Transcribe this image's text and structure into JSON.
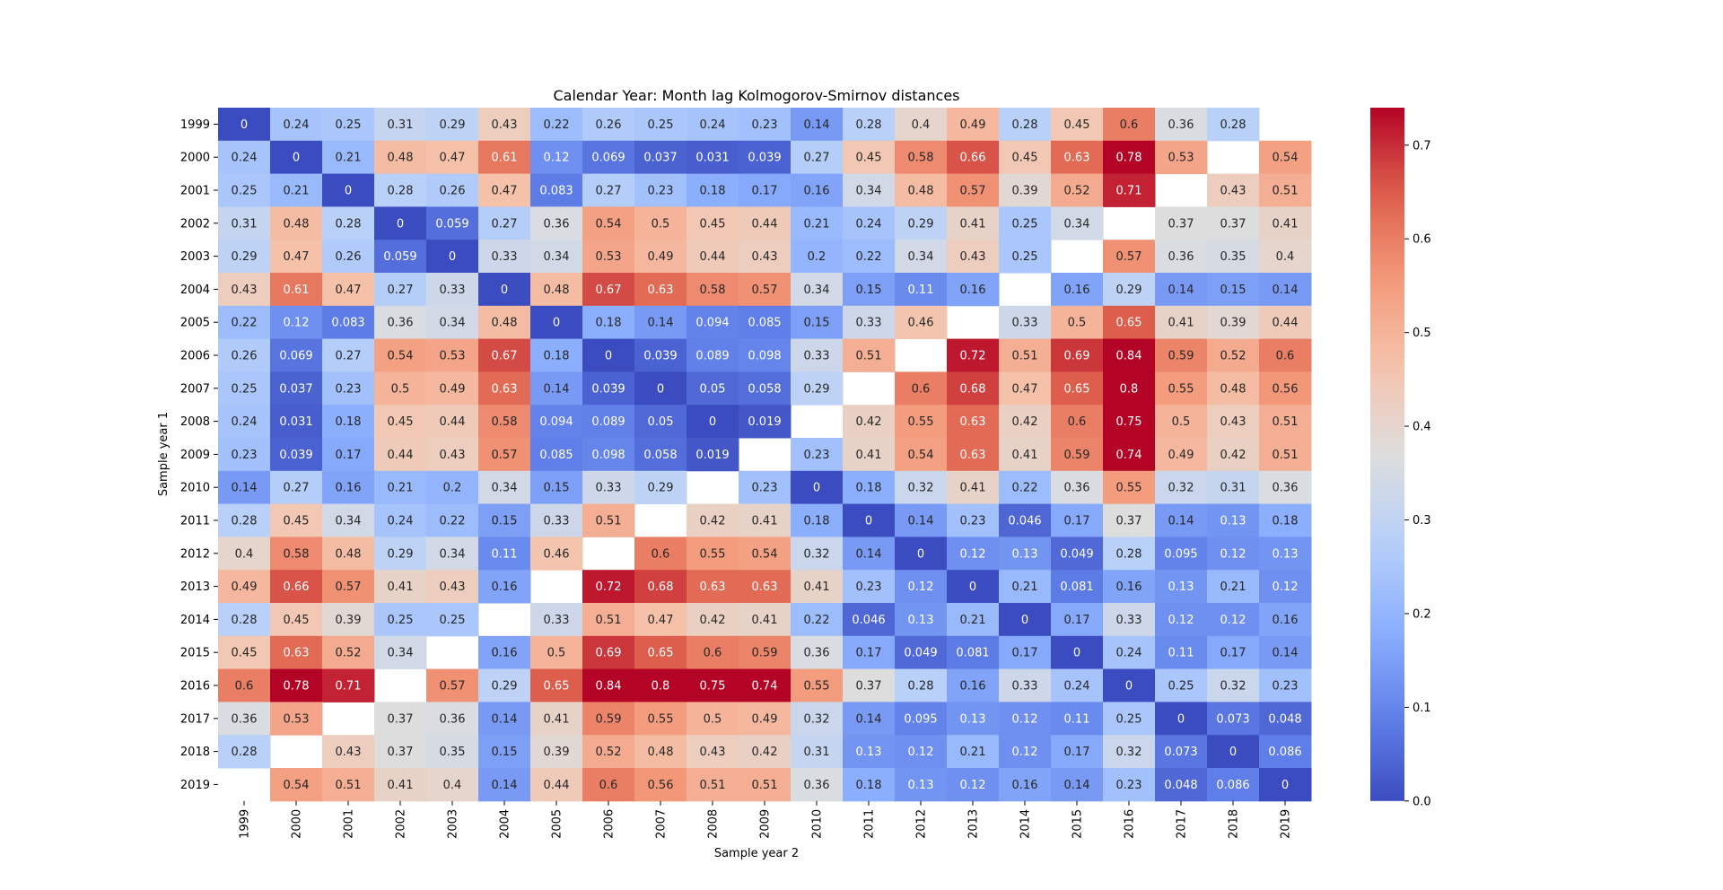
{
  "chart_data": {
    "type": "heatmap",
    "title": "Calendar Year: Month lag Kolmogorov-Smirnov distances",
    "xlabel": "Sample year 2",
    "ylabel": "Sample year 1",
    "x_categories": [
      "1999",
      "2000",
      "2001",
      "2002",
      "2003",
      "2004",
      "2005",
      "2006",
      "2007",
      "2008",
      "2009",
      "2010",
      "2011",
      "2012",
      "2013",
      "2014",
      "2015",
      "2016",
      "2017",
      "2018",
      "2019"
    ],
    "y_categories": [
      "1999",
      "2000",
      "2001",
      "2002",
      "2003",
      "2004",
      "2005",
      "2006",
      "2007",
      "2008",
      "2009",
      "2010",
      "2011",
      "2012",
      "2013",
      "2014",
      "2015",
      "2016",
      "2017",
      "2018",
      "2019"
    ],
    "values": [
      [
        0,
        0.24,
        0.25,
        0.31,
        0.29,
        0.43,
        0.22,
        0.26,
        0.25,
        0.24,
        0.23,
        0.14,
        0.28,
        0.4,
        0.49,
        0.28,
        0.45,
        0.6,
        0.36,
        0.28,
        null
      ],
      [
        0.24,
        0,
        0.21,
        0.48,
        0.47,
        0.61,
        0.12,
        0.069,
        0.037,
        0.031,
        0.039,
        0.27,
        0.45,
        0.58,
        0.66,
        0.45,
        0.63,
        0.78,
        0.53,
        null,
        0.54
      ],
      [
        0.25,
        0.21,
        0,
        0.28,
        0.26,
        0.47,
        0.083,
        0.27,
        0.23,
        0.18,
        0.17,
        0.16,
        0.34,
        0.48,
        0.57,
        0.39,
        0.52,
        0.71,
        null,
        0.43,
        0.51
      ],
      [
        0.31,
        0.48,
        0.28,
        0,
        0.059,
        0.27,
        0.36,
        0.54,
        0.5,
        0.45,
        0.44,
        0.21,
        0.24,
        0.29,
        0.41,
        0.25,
        0.34,
        null,
        0.37,
        0.37,
        0.41
      ],
      [
        0.29,
        0.47,
        0.26,
        0.059,
        0,
        0.33,
        0.34,
        0.53,
        0.49,
        0.44,
        0.43,
        0.2,
        0.22,
        0.34,
        0.43,
        0.25,
        null,
        0.57,
        0.36,
        0.35,
        0.4
      ],
      [
        0.43,
        0.61,
        0.47,
        0.27,
        0.33,
        0,
        0.48,
        0.67,
        0.63,
        0.58,
        0.57,
        0.34,
        0.15,
        0.11,
        0.16,
        null,
        0.16,
        0.29,
        0.14,
        0.15,
        0.14
      ],
      [
        0.22,
        0.12,
        0.083,
        0.36,
        0.34,
        0.48,
        0,
        0.18,
        0.14,
        0.094,
        0.085,
        0.15,
        0.33,
        0.46,
        null,
        0.33,
        0.5,
        0.65,
        0.41,
        0.39,
        0.44
      ],
      [
        0.26,
        0.069,
        0.27,
        0.54,
        0.53,
        0.67,
        0.18,
        0,
        0.039,
        0.089,
        0.098,
        0.33,
        0.51,
        null,
        0.72,
        0.51,
        0.69,
        0.84,
        0.59,
        0.52,
        0.6
      ],
      [
        0.25,
        0.037,
        0.23,
        0.5,
        0.49,
        0.63,
        0.14,
        0.039,
        0,
        0.05,
        0.058,
        0.29,
        null,
        0.6,
        0.68,
        0.47,
        0.65,
        0.8,
        0.55,
        0.48,
        0.56
      ],
      [
        0.24,
        0.031,
        0.18,
        0.45,
        0.44,
        0.58,
        0.094,
        0.089,
        0.05,
        0,
        0.019,
        null,
        0.42,
        0.55,
        0.63,
        0.42,
        0.6,
        0.75,
        0.5,
        0.43,
        0.51
      ],
      [
        0.23,
        0.039,
        0.17,
        0.44,
        0.43,
        0.57,
        0.085,
        0.098,
        0.058,
        0.019,
        null,
        0.23,
        0.41,
        0.54,
        0.63,
        0.41,
        0.59,
        0.74,
        0.49,
        0.42,
        0.51
      ],
      [
        0.14,
        0.27,
        0.16,
        0.21,
        0.2,
        0.34,
        0.15,
        0.33,
        0.29,
        null,
        0.23,
        0,
        0.18,
        0.32,
        0.41,
        0.22,
        0.36,
        0.55,
        0.32,
        0.31,
        0.36
      ],
      [
        0.28,
        0.45,
        0.34,
        0.24,
        0.22,
        0.15,
        0.33,
        0.51,
        null,
        0.42,
        0.41,
        0.18,
        0,
        0.14,
        0.23,
        0.046,
        0.17,
        0.37,
        0.14,
        0.13,
        0.18
      ],
      [
        0.4,
        0.58,
        0.48,
        0.29,
        0.34,
        0.11,
        0.46,
        null,
        0.6,
        0.55,
        0.54,
        0.32,
        0.14,
        0,
        0.12,
        0.13,
        0.049,
        0.28,
        0.095,
        0.12,
        0.13
      ],
      [
        0.49,
        0.66,
        0.57,
        0.41,
        0.43,
        0.16,
        null,
        0.72,
        0.68,
        0.63,
        0.63,
        0.41,
        0.23,
        0.12,
        0,
        0.21,
        0.081,
        0.16,
        0.13,
        0.21,
        0.12
      ],
      [
        0.28,
        0.45,
        0.39,
        0.25,
        0.25,
        null,
        0.33,
        0.51,
        0.47,
        0.42,
        0.41,
        0.22,
        0.046,
        0.13,
        0.21,
        0,
        0.17,
        0.33,
        0.12,
        0.12,
        0.16
      ],
      [
        0.45,
        0.63,
        0.52,
        0.34,
        null,
        0.16,
        0.5,
        0.69,
        0.65,
        0.6,
        0.59,
        0.36,
        0.17,
        0.049,
        0.081,
        0.17,
        0,
        0.24,
        0.11,
        0.17,
        0.14
      ],
      [
        0.6,
        0.78,
        0.71,
        null,
        0.57,
        0.29,
        0.65,
        0.84,
        0.8,
        0.75,
        0.74,
        0.55,
        0.37,
        0.28,
        0.16,
        0.33,
        0.24,
        0,
        0.25,
        0.32,
        0.23
      ],
      [
        0.36,
        0.53,
        null,
        0.37,
        0.36,
        0.14,
        0.41,
        0.59,
        0.55,
        0.5,
        0.49,
        0.32,
        0.14,
        0.095,
        0.13,
        0.12,
        0.11,
        0.25,
        0,
        0.073,
        0.048
      ],
      [
        0.28,
        null,
        0.43,
        0.37,
        0.35,
        0.15,
        0.39,
        0.52,
        0.48,
        0.43,
        0.42,
        0.31,
        0.13,
        0.12,
        0.21,
        0.12,
        0.17,
        0.32,
        0.073,
        0,
        0.086
      ],
      [
        null,
        0.54,
        0.51,
        0.41,
        0.4,
        0.14,
        0.44,
        0.6,
        0.56,
        0.51,
        0.51,
        0.36,
        0.18,
        0.13,
        0.12,
        0.16,
        0.14,
        0.23,
        0.048,
        0.086,
        0
      ]
    ],
    "colorscale": "coolwarm",
    "vmin": 0,
    "vmax": 0.74,
    "colorbar_ticks": [
      "0.0",
      "0.1",
      "0.2",
      "0.3",
      "0.4",
      "0.5",
      "0.6",
      "0.7"
    ],
    "colorbar_tick_values": [
      0,
      0.1,
      0.2,
      0.3,
      0.4,
      0.5,
      0.6,
      0.7
    ],
    "grid": false,
    "legend": "right (colorbar)"
  }
}
